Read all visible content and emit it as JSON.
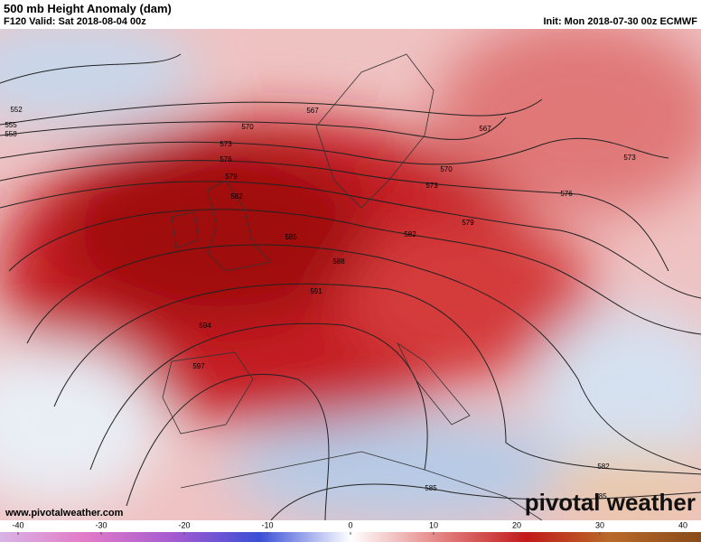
{
  "header": {
    "title": "500 mb Height Anomaly (dam)",
    "valid": "F120 Valid: Sat 2018-08-04 00z",
    "init": "Init: Mon 2018-07-30 00z ECMWF"
  },
  "contour_labels": [
    "552",
    "555",
    "558",
    "567",
    "570",
    "573",
    "576",
    "579",
    "582",
    "585",
    "588",
    "591",
    "594",
    "597",
    "567",
    "570",
    "573",
    "576",
    "579",
    "582",
    "573",
    "582",
    "585",
    "585"
  ],
  "footer": {
    "url": "www.pivotalweather.com",
    "logo": "pivotal weather"
  },
  "colorbar": {
    "ticks": [
      -40,
      -30,
      -20,
      -10,
      0,
      10,
      20,
      30,
      40
    ]
  }
}
